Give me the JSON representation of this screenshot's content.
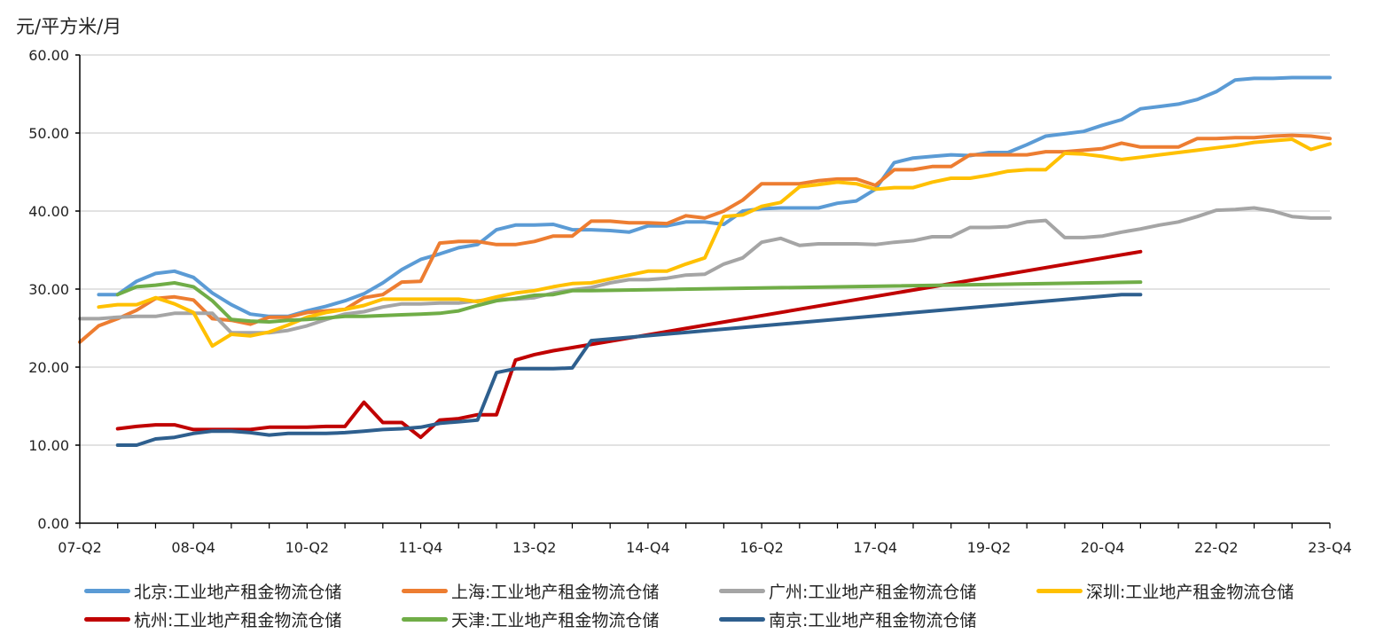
{
  "chart_data": {
    "type": "line",
    "ylabel": "元/平方米/月",
    "ylim": [
      0,
      60
    ],
    "y_ticks": [
      "0.00",
      "10.00",
      "20.00",
      "30.00",
      "40.00",
      "50.00",
      "60.00"
    ],
    "x_tick_labels": [
      "07-Q2",
      "08-Q4",
      "10-Q2",
      "11-Q4",
      "13-Q2",
      "14-Q4",
      "16-Q2",
      "17-Q4",
      "19-Q2",
      "20-Q4",
      "22-Q2",
      "23-Q4"
    ],
    "grid": "horizontal",
    "legend_position": "bottom",
    "series": [
      {
        "name": "北京:工业地产租金物流仓储",
        "color": "#5B9BD5",
        "x": [
          "07-Q3",
          "07-Q4",
          "08-Q1",
          "08-Q2",
          "08-Q3",
          "08-Q4",
          "09-Q1",
          "09-Q2",
          "09-Q3",
          "09-Q4",
          "10-Q1",
          "10-Q2",
          "10-Q3",
          "10-Q4",
          "11-Q1",
          "11-Q2",
          "11-Q3",
          "11-Q4",
          "12-Q1",
          "12-Q2",
          "12-Q3",
          "12-Q4",
          "13-Q1",
          "13-Q2",
          "13-Q3",
          "13-Q4",
          "14-Q1",
          "14-Q2",
          "14-Q3",
          "14-Q4",
          "15-Q1",
          "15-Q2",
          "15-Q3",
          "15-Q4",
          "16-Q1",
          "16-Q2",
          "16-Q3",
          "16-Q4",
          "17-Q1",
          "17-Q2",
          "17-Q3",
          "17-Q4",
          "18-Q1",
          "18-Q2",
          "18-Q3",
          "18-Q4",
          "19-Q1",
          "19-Q2",
          "19-Q3",
          "19-Q4",
          "20-Q1",
          "20-Q2",
          "20-Q3",
          "20-Q4",
          "21-Q1",
          "21-Q2",
          "21-Q3",
          "21-Q4",
          "22-Q1",
          "22-Q2",
          "22-Q3",
          "22-Q4",
          "23-Q1",
          "23-Q2",
          "23-Q3",
          "23-Q4"
        ],
        "values": [
          29.3,
          29.3,
          31.0,
          32.0,
          32.3,
          31.5,
          29.5,
          28.0,
          26.8,
          26.5,
          26.5,
          27.2,
          27.8,
          28.5,
          29.4,
          30.8,
          32.5,
          33.8,
          34.5,
          35.3,
          35.7,
          37.6,
          38.2,
          38.2,
          38.3,
          37.6,
          37.6,
          37.5,
          37.3,
          38.1,
          38.1,
          38.6,
          38.6,
          38.3,
          40.0,
          40.3,
          40.4,
          40.4,
          40.4,
          41.0,
          41.3,
          42.8,
          46.2,
          46.8,
          47.0,
          47.2,
          47.1,
          47.5,
          47.5,
          48.5,
          49.6,
          49.9,
          50.2,
          51.0,
          51.7,
          53.1,
          53.4,
          53.7,
          54.3,
          55.3,
          56.8,
          57.0,
          57.0,
          57.1,
          57.1,
          57.1
        ]
      },
      {
        "name": "上海:工业地产租金物流仓储",
        "color": "#ED7D31",
        "x": [
          "07-Q2",
          "07-Q3",
          "07-Q4",
          "08-Q1",
          "08-Q2",
          "08-Q3",
          "08-Q4",
          "09-Q1",
          "09-Q2",
          "09-Q3",
          "09-Q4",
          "10-Q1",
          "10-Q2",
          "10-Q3",
          "10-Q4",
          "11-Q1",
          "11-Q2",
          "11-Q3",
          "11-Q4",
          "12-Q1",
          "12-Q2",
          "12-Q3",
          "12-Q4",
          "13-Q1",
          "13-Q2",
          "13-Q3",
          "13-Q4",
          "14-Q1",
          "14-Q2",
          "14-Q3",
          "14-Q4",
          "15-Q1",
          "15-Q2",
          "15-Q3",
          "15-Q4",
          "16-Q1",
          "16-Q2",
          "16-Q3",
          "16-Q4",
          "17-Q1",
          "17-Q2",
          "17-Q3",
          "17-Q4",
          "18-Q1",
          "18-Q2",
          "18-Q3",
          "18-Q4",
          "19-Q1",
          "19-Q2",
          "19-Q3",
          "19-Q4",
          "20-Q1",
          "20-Q2",
          "20-Q3",
          "20-Q4",
          "21-Q1",
          "21-Q2",
          "21-Q3",
          "21-Q4",
          "22-Q1",
          "22-Q2",
          "22-Q3",
          "22-Q4",
          "23-Q1",
          "23-Q2",
          "23-Q3",
          "23-Q4"
        ],
        "values": [
          23.2,
          25.3,
          26.2,
          27.3,
          28.8,
          29.0,
          28.6,
          26.2,
          26.0,
          25.5,
          26.4,
          26.4,
          27.0,
          27.2,
          27.4,
          28.9,
          29.3,
          30.9,
          31.0,
          35.9,
          36.1,
          36.1,
          35.7,
          35.7,
          36.1,
          36.8,
          36.8,
          38.7,
          38.7,
          38.5,
          38.5,
          38.4,
          39.4,
          39.1,
          40.0,
          41.4,
          43.5,
          43.5,
          43.5,
          43.9,
          44.1,
          44.1,
          43.3,
          45.3,
          45.3,
          45.7,
          45.7,
          47.2,
          47.2,
          47.2,
          47.2,
          47.6,
          47.6,
          47.8,
          48.0,
          48.7,
          48.2,
          48.2,
          48.2,
          49.3,
          49.3,
          49.4,
          49.4,
          49.6,
          49.7,
          49.6,
          49.3
        ]
      },
      {
        "name": "广州:工业地产租金物流仓储",
        "color": "#A5A5A5",
        "x": [
          "07-Q2",
          "07-Q3",
          "07-Q4",
          "08-Q1",
          "08-Q2",
          "08-Q3",
          "08-Q4",
          "09-Q1",
          "09-Q2",
          "09-Q3",
          "09-Q4",
          "10-Q1",
          "10-Q2",
          "10-Q3",
          "10-Q4",
          "11-Q1",
          "11-Q2",
          "11-Q3",
          "11-Q4",
          "12-Q1",
          "12-Q2",
          "12-Q3",
          "12-Q4",
          "13-Q1",
          "13-Q2",
          "13-Q3",
          "13-Q4",
          "14-Q1",
          "14-Q2",
          "14-Q3",
          "14-Q4",
          "15-Q1",
          "15-Q2",
          "15-Q3",
          "15-Q4",
          "16-Q1",
          "16-Q2",
          "16-Q3",
          "16-Q4",
          "17-Q1",
          "17-Q2",
          "17-Q3",
          "17-Q4",
          "18-Q1",
          "18-Q2",
          "18-Q3",
          "18-Q4",
          "19-Q1",
          "19-Q2",
          "19-Q3",
          "19-Q4",
          "20-Q1",
          "20-Q2",
          "20-Q3",
          "20-Q4",
          "21-Q1",
          "21-Q2",
          "21-Q3",
          "21-Q4",
          "22-Q1",
          "22-Q2",
          "22-Q3",
          "22-Q4",
          "23-Q1",
          "23-Q2",
          "23-Q3",
          "23-Q4"
        ],
        "values": [
          26.2,
          26.2,
          26.4,
          26.5,
          26.5,
          26.9,
          26.9,
          26.9,
          24.4,
          24.4,
          24.4,
          24.7,
          25.3,
          26.1,
          26.8,
          27.1,
          27.7,
          28.1,
          28.1,
          28.2,
          28.2,
          28.5,
          28.7,
          28.7,
          28.9,
          29.5,
          29.9,
          30.2,
          30.8,
          31.2,
          31.2,
          31.4,
          31.8,
          31.9,
          33.2,
          34.0,
          36.0,
          36.5,
          35.6,
          35.8,
          35.8,
          35.8,
          35.7,
          36.0,
          36.2,
          36.7,
          36.7,
          37.9,
          37.9,
          38.0,
          38.6,
          38.8,
          36.6,
          36.6,
          36.8,
          37.3,
          37.7,
          38.2,
          38.6,
          39.3,
          40.1,
          40.2,
          40.4,
          40.0,
          39.3,
          39.1,
          39.1
        ]
      },
      {
        "name": "深圳:工业地产租金物流仓储",
        "color": "#FFC000",
        "x": [
          "07-Q3",
          "07-Q4",
          "08-Q1",
          "08-Q2",
          "08-Q3",
          "08-Q4",
          "09-Q1",
          "09-Q2",
          "09-Q3",
          "09-Q4",
          "10-Q1",
          "10-Q2",
          "10-Q3",
          "10-Q4",
          "11-Q1",
          "11-Q2",
          "11-Q3",
          "11-Q4",
          "12-Q1",
          "12-Q2",
          "12-Q3",
          "12-Q4",
          "13-Q1",
          "13-Q2",
          "13-Q3",
          "13-Q4",
          "14-Q1",
          "14-Q2",
          "14-Q3",
          "14-Q4",
          "15-Q1",
          "15-Q2",
          "15-Q3",
          "15-Q4",
          "16-Q1",
          "16-Q2",
          "16-Q3",
          "16-Q4",
          "17-Q1",
          "17-Q2",
          "17-Q3",
          "17-Q4",
          "18-Q1",
          "18-Q2",
          "18-Q3",
          "18-Q4",
          "19-Q1",
          "19-Q2",
          "19-Q3",
          "19-Q4",
          "20-Q1",
          "20-Q2",
          "20-Q3",
          "20-Q4",
          "21-Q1",
          "21-Q2",
          "21-Q3",
          "21-Q4",
          "22-Q1",
          "22-Q2",
          "22-Q3",
          "22-Q4",
          "23-Q1",
          "23-Q2",
          "23-Q3",
          "23-Q4"
        ],
        "values": [
          27.7,
          28.0,
          28.0,
          28.9,
          28.1,
          27.0,
          22.7,
          24.2,
          24.0,
          24.5,
          25.4,
          26.4,
          27.0,
          27.4,
          27.9,
          28.7,
          28.7,
          28.7,
          28.7,
          28.7,
          28.4,
          29.0,
          29.5,
          29.8,
          30.3,
          30.7,
          30.8,
          31.3,
          31.8,
          32.3,
          32.3,
          33.2,
          34.0,
          39.3,
          39.5,
          40.6,
          41.1,
          43.1,
          43.4,
          43.7,
          43.5,
          42.8,
          43.0,
          43.0,
          43.7,
          44.2,
          44.2,
          44.6,
          45.1,
          45.3,
          45.3,
          47.4,
          47.3,
          47.0,
          46.6,
          46.9,
          47.2,
          47.5,
          47.8,
          48.1,
          48.4,
          48.8,
          49.0,
          49.2,
          47.9,
          48.6
        ]
      },
      {
        "name": "杭州:工业地产租金物流仓储",
        "color": "#C00000",
        "x": [
          "07-Q4",
          "08-Q1",
          "08-Q2",
          "08-Q3",
          "08-Q4",
          "09-Q1",
          "09-Q2",
          "09-Q3",
          "09-Q4",
          "10-Q1",
          "10-Q2",
          "10-Q3",
          "10-Q4",
          "11-Q1",
          "11-Q2",
          "11-Q3",
          "11-Q4",
          "12-Q1",
          "12-Q2",
          "12-Q3",
          "12-Q4",
          "13-Q1",
          "13-Q2",
          "13-Q3",
          "13-Q4",
          "21-Q2"
        ],
        "values": [
          12.1,
          12.4,
          12.6,
          12.6,
          12.0,
          12.0,
          12.0,
          12.0,
          12.3,
          12.3,
          12.3,
          12.4,
          12.4,
          15.5,
          12.9,
          12.9,
          11.0,
          13.2,
          13.4,
          13.9,
          13.9,
          20.9,
          21.6,
          22.1,
          22.5,
          34.8
        ]
      },
      {
        "name": "天津:工业地产租金物流仓储",
        "color": "#70AD47",
        "x": [
          "07-Q4",
          "08-Q1",
          "08-Q2",
          "08-Q3",
          "08-Q4",
          "09-Q1",
          "09-Q2",
          "09-Q3",
          "09-Q4",
          "10-Q1",
          "10-Q2",
          "10-Q3",
          "10-Q4",
          "11-Q1",
          "11-Q2",
          "11-Q3",
          "11-Q4",
          "12-Q1",
          "12-Q2",
          "12-Q3",
          "12-Q4",
          "13-Q1",
          "13-Q2",
          "13-Q3",
          "13-Q4",
          "14-Q1",
          "21-Q2"
        ],
        "values": [
          29.3,
          30.3,
          30.5,
          30.8,
          30.3,
          28.5,
          26.1,
          25.9,
          25.8,
          26.0,
          26.1,
          26.3,
          26.5,
          26.5,
          26.6,
          26.7,
          26.8,
          26.9,
          27.2,
          27.9,
          28.5,
          28.8,
          29.2,
          29.3,
          29.8,
          29.8,
          30.9
        ]
      },
      {
        "name": "南京:工业地产租金物流仓储",
        "color": "#2E5F8E",
        "x": [
          "07-Q4",
          "08-Q1",
          "08-Q2",
          "08-Q3",
          "08-Q4",
          "09-Q1",
          "09-Q2",
          "09-Q3",
          "09-Q4",
          "10-Q1",
          "10-Q2",
          "10-Q3",
          "10-Q4",
          "11-Q1",
          "11-Q2",
          "11-Q3",
          "11-Q4",
          "12-Q1",
          "12-Q2",
          "12-Q3",
          "12-Q4",
          "13-Q1",
          "13-Q2",
          "13-Q3",
          "13-Q4",
          "14-Q1",
          "21-Q1",
          "21-Q2"
        ],
        "values": [
          10.0,
          10.0,
          10.8,
          11.0,
          11.5,
          11.8,
          11.8,
          11.6,
          11.3,
          11.5,
          11.5,
          11.5,
          11.6,
          11.8,
          12.0,
          12.1,
          12.3,
          12.8,
          13.0,
          13.2,
          19.3,
          19.8,
          19.8,
          19.8,
          19.9,
          23.4,
          29.3,
          29.3
        ]
      }
    ]
  }
}
